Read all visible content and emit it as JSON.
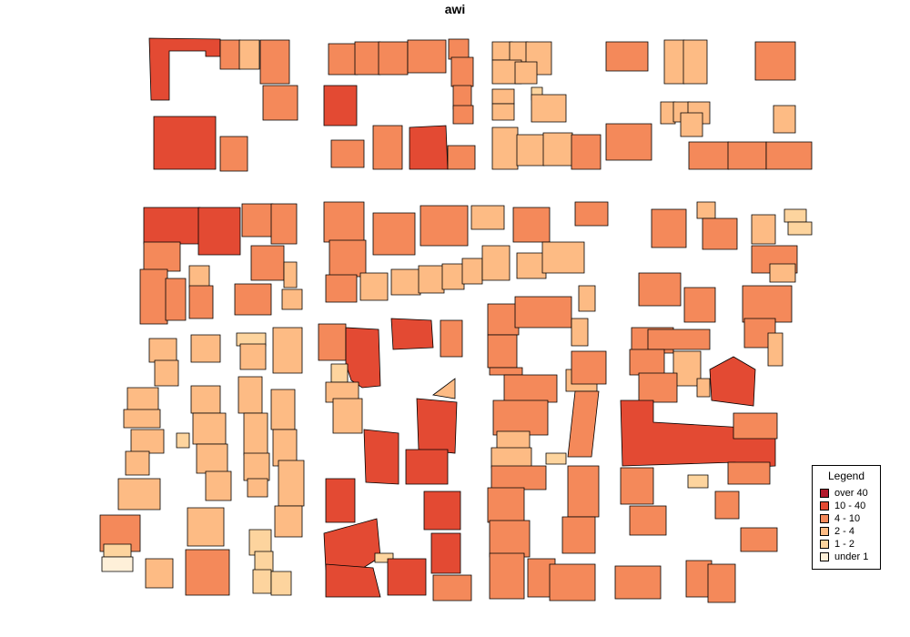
{
  "title": "awi",
  "legend": {
    "title": "Legend",
    "classes": [
      {
        "label": "over 40",
        "color": "#b2182b"
      },
      {
        "label": "10 - 40",
        "color": "#e34a33"
      },
      {
        "label": "4 - 10",
        "color": "#f4895a"
      },
      {
        "label": "2 - 4",
        "color": "#fdbb84"
      },
      {
        "label": "1 - 2",
        "color": "#fdd49e"
      },
      {
        "label": "under 1",
        "color": "#fef0d9"
      }
    ]
  }
}
